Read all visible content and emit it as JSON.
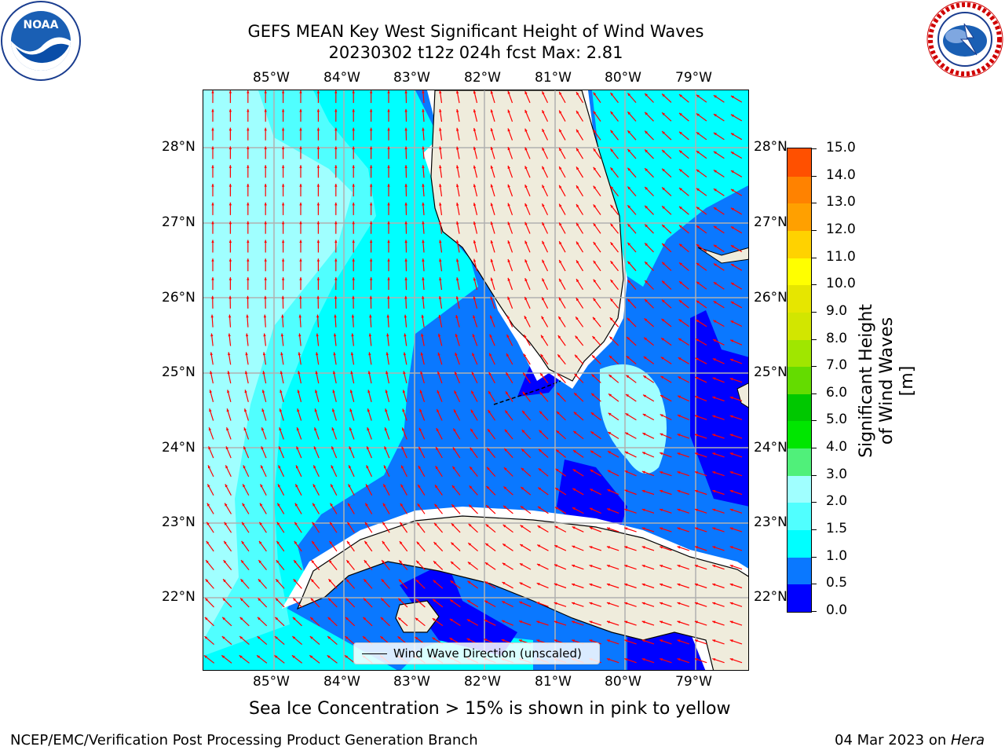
{
  "title": {
    "line1": "GEFS MEAN Key West Significant Height of Wind Waves",
    "line2": "20230302 t12z 024h fcst   Max: 2.81"
  },
  "logos": {
    "left": {
      "name": "NOAA",
      "ring_text": "NATIONAL OCEANIC AND ATMOSPHERIC ADMINISTRATION · U.S. DEPARTMENT OF COMMERCE"
    },
    "right": {
      "ring_text": "NATIONAL WEATHER SERVICE"
    }
  },
  "map": {
    "lon_labels": [
      "85°W",
      "84°W",
      "83°W",
      "82°W",
      "81°W",
      "80°W",
      "79°W"
    ],
    "lat_labels": [
      "28°N",
      "27°N",
      "26°N",
      "25°N",
      "24°N",
      "23°N",
      "22°N"
    ],
    "legend_label": "Wind Wave Direction (unscaled)",
    "colors": {
      "land": "#efecdc",
      "coast": "#000000",
      "arrow": "#ff0000",
      "grid": "#b0b0b0"
    }
  },
  "colorbar": {
    "label": "Significant Height of Wind Waves [m]",
    "ticks": [
      "15.0",
      "14.0",
      "13.0",
      "12.0",
      "11.0",
      "10.0",
      "9.0",
      "8.0",
      "7.0",
      "6.0",
      "5.0",
      "4.0",
      "3.0",
      "2.0",
      "1.5",
      "1.0",
      "0.5",
      "0.0"
    ],
    "colors": [
      "#0000ff",
      "#0a78ff",
      "#00ffff",
      "#50ffff",
      "#a0ffff",
      "#50f07a",
      "#00e600",
      "#00c800",
      "#64dc00",
      "#a0e600",
      "#d2e600",
      "#e6e600",
      "#ffff00",
      "#ffd200",
      "#ffa000",
      "#ff8200",
      "#ff5000",
      "#ff2800",
      "#ff0000"
    ]
  },
  "bottom_note": "Sea Ice Concentration > 15% is shown in pink to yellow",
  "footer": {
    "left": "NCEP/EMC/Verification Post Processing Product Generation Branch",
    "right_date": "04 Mar 2023 on ",
    "right_machine": "Hera"
  }
}
